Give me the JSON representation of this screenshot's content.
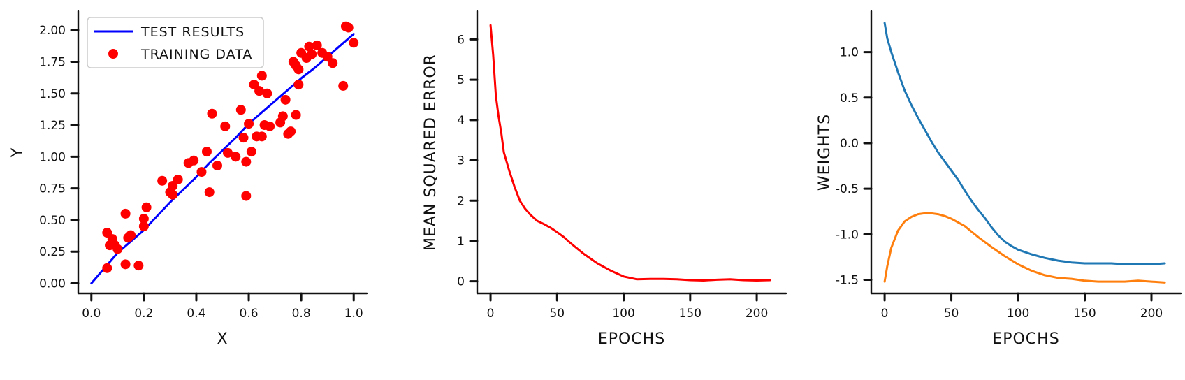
{
  "chart_data": [
    {
      "type": "scatter",
      "xlabel": "X",
      "ylabel": "Y",
      "xlim": [
        -0.05,
        1.05
      ],
      "ylim": [
        -0.08,
        2.15
      ],
      "xticks": [
        0.0,
        0.2,
        0.4,
        0.6,
        0.8,
        1.0
      ],
      "xtick_labels": [
        "0.0",
        "0.2",
        "0.4",
        "0.6",
        "0.8",
        "1.0"
      ],
      "yticks": [
        0.0,
        0.25,
        0.5,
        0.75,
        1.0,
        1.25,
        1.5,
        1.75,
        2.0
      ],
      "ytick_labels": [
        "0.00",
        "0.25",
        "0.50",
        "0.75",
        "1.00",
        "1.25",
        "1.50",
        "1.75",
        "2.00"
      ],
      "legend_position": "top-left",
      "series": [
        {
          "name": "TEST RESULTS",
          "kind": "line",
          "color": "#0000ff",
          "x": [
            0.0,
            0.05,
            0.1,
            0.15,
            0.2,
            0.25,
            0.3,
            0.35,
            0.4,
            0.45,
            0.5,
            0.55,
            0.6,
            0.65,
            0.7,
            0.75,
            0.8,
            0.85,
            0.9,
            0.95,
            1.0
          ],
          "y": [
            0.0,
            0.12,
            0.24,
            0.33,
            0.42,
            0.53,
            0.64,
            0.74,
            0.84,
            0.95,
            1.05,
            1.15,
            1.26,
            1.35,
            1.44,
            1.53,
            1.62,
            1.7,
            1.79,
            1.88,
            1.97
          ]
        },
        {
          "name": "TRAINING DATA",
          "kind": "scatter",
          "color": "#ff0000",
          "x": [
            0.06,
            0.07,
            0.08,
            0.09,
            0.1,
            0.13,
            0.14,
            0.15,
            0.18,
            0.2,
            0.2,
            0.21,
            0.06,
            0.13,
            0.27,
            0.3,
            0.31,
            0.31,
            0.33,
            0.37,
            0.39,
            0.42,
            0.44,
            0.45,
            0.46,
            0.48,
            0.51,
            0.52,
            0.55,
            0.57,
            0.58,
            0.59,
            0.59,
            0.6,
            0.61,
            0.62,
            0.63,
            0.64,
            0.65,
            0.65,
            0.66,
            0.67,
            0.68,
            0.72,
            0.73,
            0.74,
            0.75,
            0.76,
            0.77,
            0.78,
            0.78,
            0.79,
            0.79,
            0.8,
            0.82,
            0.83,
            0.84,
            0.86,
            0.88,
            0.9,
            0.92,
            0.96,
            0.97,
            0.98,
            1.0
          ],
          "y": [
            0.4,
            0.3,
            0.35,
            0.3,
            0.27,
            0.55,
            0.36,
            0.38,
            0.14,
            0.51,
            0.45,
            0.6,
            0.12,
            0.15,
            0.81,
            0.72,
            0.77,
            0.7,
            0.82,
            0.95,
            0.97,
            0.88,
            1.04,
            0.72,
            1.34,
            0.93,
            1.24,
            1.03,
            1.0,
            1.37,
            1.15,
            0.96,
            0.69,
            1.26,
            1.04,
            1.57,
            1.16,
            1.52,
            1.16,
            1.64,
            1.25,
            1.5,
            1.24,
            1.27,
            1.32,
            1.45,
            1.18,
            1.2,
            1.75,
            1.72,
            1.33,
            1.57,
            1.69,
            1.82,
            1.78,
            1.87,
            1.81,
            1.88,
            1.82,
            1.79,
            1.74,
            1.56,
            2.03,
            2.02,
            1.9
          ]
        }
      ]
    },
    {
      "type": "line",
      "xlabel": "EPOCHS",
      "ylabel": "MEAN SQUARED ERROR",
      "xlim": [
        -10,
        222
      ],
      "ylim": [
        -0.3,
        6.7
      ],
      "xticks": [
        0,
        50,
        100,
        150,
        200
      ],
      "xtick_labels": [
        "0",
        "50",
        "100",
        "150",
        "200"
      ],
      "yticks": [
        0,
        1,
        2,
        3,
        4,
        5,
        6
      ],
      "ytick_labels": [
        "0",
        "1",
        "2",
        "3",
        "4",
        "5",
        "6"
      ],
      "series": [
        {
          "color": "#ff0000",
          "x": [
            0,
            2,
            4,
            6,
            8,
            10,
            14,
            18,
            22,
            26,
            30,
            35,
            40,
            45,
            50,
            55,
            60,
            70,
            80,
            90,
            100,
            110,
            120,
            130,
            140,
            150,
            160,
            170,
            180,
            190,
            200,
            210
          ],
          "y": [
            6.35,
            5.6,
            4.6,
            4.1,
            3.7,
            3.2,
            2.75,
            2.35,
            2.0,
            1.8,
            1.65,
            1.5,
            1.42,
            1.33,
            1.22,
            1.1,
            0.95,
            0.68,
            0.45,
            0.27,
            0.12,
            0.05,
            0.06,
            0.06,
            0.05,
            0.03,
            0.02,
            0.04,
            0.05,
            0.03,
            0.02,
            0.03
          ]
        }
      ]
    },
    {
      "type": "line",
      "xlabel": "EPOCHS",
      "ylabel": "WEIGHTS",
      "xlim": [
        -10,
        222
      ],
      "ylim": [
        -1.65,
        1.45
      ],
      "xticks": [
        0,
        50,
        100,
        150,
        200
      ],
      "xtick_labels": [
        "0",
        "50",
        "100",
        "150",
        "200"
      ],
      "yticks": [
        -1.5,
        -1.0,
        -0.5,
        0.0,
        0.5,
        1.0
      ],
      "ytick_labels": [
        "-1.5",
        "-1.0",
        "-0.5",
        "0.0",
        "0.5",
        "1.0"
      ],
      "series": [
        {
          "color": "#1f77b4",
          "x": [
            0,
            2,
            5,
            10,
            15,
            20,
            25,
            30,
            35,
            40,
            45,
            50,
            55,
            60,
            65,
            70,
            75,
            80,
            85,
            90,
            95,
            100,
            110,
            120,
            130,
            140,
            150,
            160,
            170,
            180,
            190,
            200,
            210
          ],
          "y": [
            1.32,
            1.15,
            1.0,
            0.78,
            0.58,
            0.42,
            0.28,
            0.15,
            0.02,
            -0.1,
            -0.2,
            -0.3,
            -0.4,
            -0.52,
            -0.63,
            -0.73,
            -0.82,
            -0.92,
            -1.01,
            -1.08,
            -1.13,
            -1.17,
            -1.22,
            -1.26,
            -1.29,
            -1.31,
            -1.32,
            -1.32,
            -1.32,
            -1.33,
            -1.33,
            -1.33,
            -1.32
          ]
        },
        {
          "color": "#ff7f0e",
          "x": [
            0,
            2,
            5,
            10,
            15,
            20,
            25,
            30,
            35,
            40,
            45,
            50,
            60,
            70,
            80,
            90,
            100,
            110,
            120,
            130,
            140,
            150,
            160,
            170,
            180,
            190,
            200,
            210
          ],
          "y": [
            -1.52,
            -1.35,
            -1.15,
            -0.96,
            -0.86,
            -0.81,
            -0.78,
            -0.77,
            -0.77,
            -0.78,
            -0.8,
            -0.83,
            -0.91,
            -1.03,
            -1.14,
            -1.24,
            -1.33,
            -1.4,
            -1.45,
            -1.48,
            -1.49,
            -1.51,
            -1.52,
            -1.52,
            -1.52,
            -1.51,
            -1.52,
            -1.53
          ]
        }
      ]
    }
  ]
}
